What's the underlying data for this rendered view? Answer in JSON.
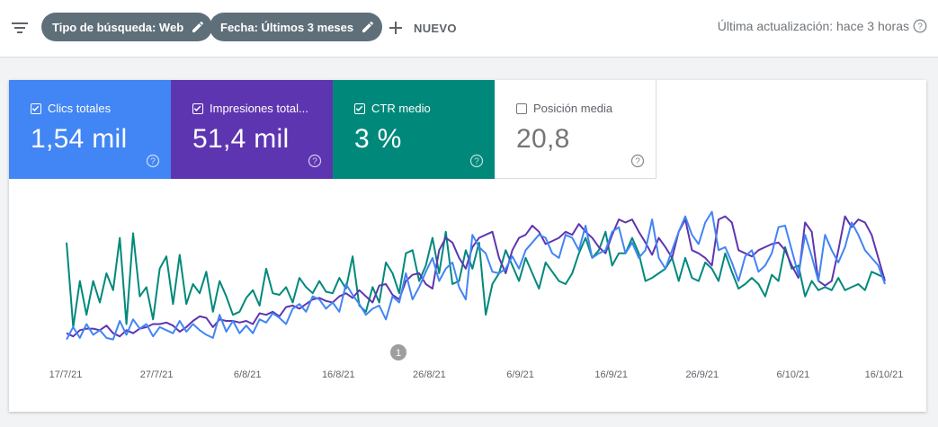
{
  "toolbar": {
    "filter_icon": "filter-list-icon",
    "chips": [
      {
        "label": "Tipo de búsqueda: Web"
      },
      {
        "label": "Fecha: Últimos 3 meses"
      }
    ],
    "new_label": "NUEVO",
    "last_update": "Última actualización: hace 3 horas"
  },
  "metrics": [
    {
      "label": "Clics totales",
      "value": "1,54 mil",
      "checked": true,
      "color": "#4285f4"
    },
    {
      "label": "Impresiones total...",
      "value": "51,4 mil",
      "checked": true,
      "color": "#5e35b1"
    },
    {
      "label": "CTR medio",
      "value": "3 %",
      "checked": true,
      "color": "#00897b"
    },
    {
      "label": "Posición media",
      "value": "20,8",
      "checked": false,
      "color": "#ffffff"
    }
  ],
  "chart_data": {
    "type": "line",
    "x_tick_labels": [
      "17/7/21",
      "27/7/21",
      "6/8/21",
      "16/8/21",
      "26/8/21",
      "6/9/21",
      "16/9/21",
      "26/9/21",
      "6/10/21",
      "16/10/21"
    ],
    "annotation": "1",
    "series": [
      {
        "color": "#00897b",
        "values": [
          65,
          10,
          40,
          18,
          40,
          26,
          45,
          34,
          68,
          12,
          71,
          30,
          36,
          15,
          48,
          56,
          25,
          57,
          25,
          38,
          32,
          46,
          20,
          40,
          30,
          18,
          20,
          29,
          34,
          24,
          48,
          32,
          31,
          36,
          26,
          42,
          36,
          32,
          40,
          33,
          32,
          42,
          35,
          56,
          24,
          20,
          36,
          26,
          52,
          45,
          32,
          58,
          60,
          40,
          50,
          68,
          45,
          72,
          38,
          40,
          60,
          48,
          65,
          18,
          38,
          45,
          60,
          50,
          40,
          55,
          45,
          35,
          52,
          46,
          40,
          38,
          45,
          58,
          68,
          55,
          60,
          72,
          50,
          58,
          58,
          68,
          58,
          40,
          42,
          45,
          48,
          55,
          40,
          55,
          42,
          40,
          52,
          48,
          40,
          58,
          46,
          35,
          38,
          42,
          38,
          30,
          44,
          40,
          62,
          48,
          50,
          30,
          40,
          34,
          36,
          34,
          42,
          34,
          36,
          38,
          34,
          46,
          44,
          42
        ]
      },
      {
        "color": "#5e35b1",
        "values": [
          6,
          4,
          8,
          9,
          9,
          8,
          11,
          6,
          4,
          8,
          6,
          9,
          10,
          12,
          12,
          13,
          11,
          7,
          10,
          14,
          17,
          16,
          10,
          15,
          14,
          14,
          13,
          14,
          12,
          19,
          18,
          20,
          17,
          23,
          24,
          22,
          25,
          28,
          29,
          27,
          26,
          30,
          32,
          29,
          34,
          30,
          26,
          37,
          38,
          31,
          28,
          40,
          44,
          45,
          38,
          35,
          60,
          68,
          65,
          55,
          48,
          62,
          68,
          70,
          72,
          55,
          45,
          60,
          68,
          70,
          76,
          72,
          64,
          66,
          68,
          72,
          70,
          77,
          72,
          68,
          62,
          58,
          70,
          80,
          78,
          80,
          72,
          65,
          57,
          68,
          62,
          55,
          72,
          80,
          60,
          58,
          55,
          50,
          80,
          82,
          78,
          60,
          58,
          56,
          60,
          62,
          64,
          65,
          60,
          50,
          42,
          78,
          72,
          40,
          37,
          40,
          60,
          82,
          75,
          80,
          78,
          70,
          55,
          40
        ]
      },
      {
        "color": "#4285f4",
        "values": [
          2,
          10,
          3,
          12,
          5,
          8,
          3,
          2,
          14,
          5,
          15,
          9,
          12,
          4,
          10,
          8,
          6,
          14,
          7,
          12,
          8,
          5,
          3,
          18,
          7,
          14,
          6,
          11,
          6,
          15,
          13,
          19,
          16,
          12,
          22,
          25,
          20,
          30,
          28,
          22,
          26,
          20,
          38,
          31,
          25,
          18,
          22,
          24,
          15,
          30,
          26,
          45,
          28,
          36,
          46,
          55,
          40,
          48,
          52,
          36,
          28,
          70,
          62,
          58,
          46,
          45,
          48,
          56,
          48,
          60,
          65,
          70,
          68,
          58,
          55,
          70,
          68,
          60,
          76,
          55,
          58,
          60,
          72,
          75,
          58,
          65,
          55,
          60,
          80,
          55,
          48,
          60,
          72,
          82,
          70,
          64,
          78,
          85,
          60,
          62,
          52,
          40,
          56,
          60,
          46,
          50,
          58,
          75,
          76,
          60,
          44,
          70,
          56,
          40,
          70,
          60,
          52,
          62,
          78,
          70,
          60,
          55,
          50,
          38
        ]
      }
    ]
  }
}
